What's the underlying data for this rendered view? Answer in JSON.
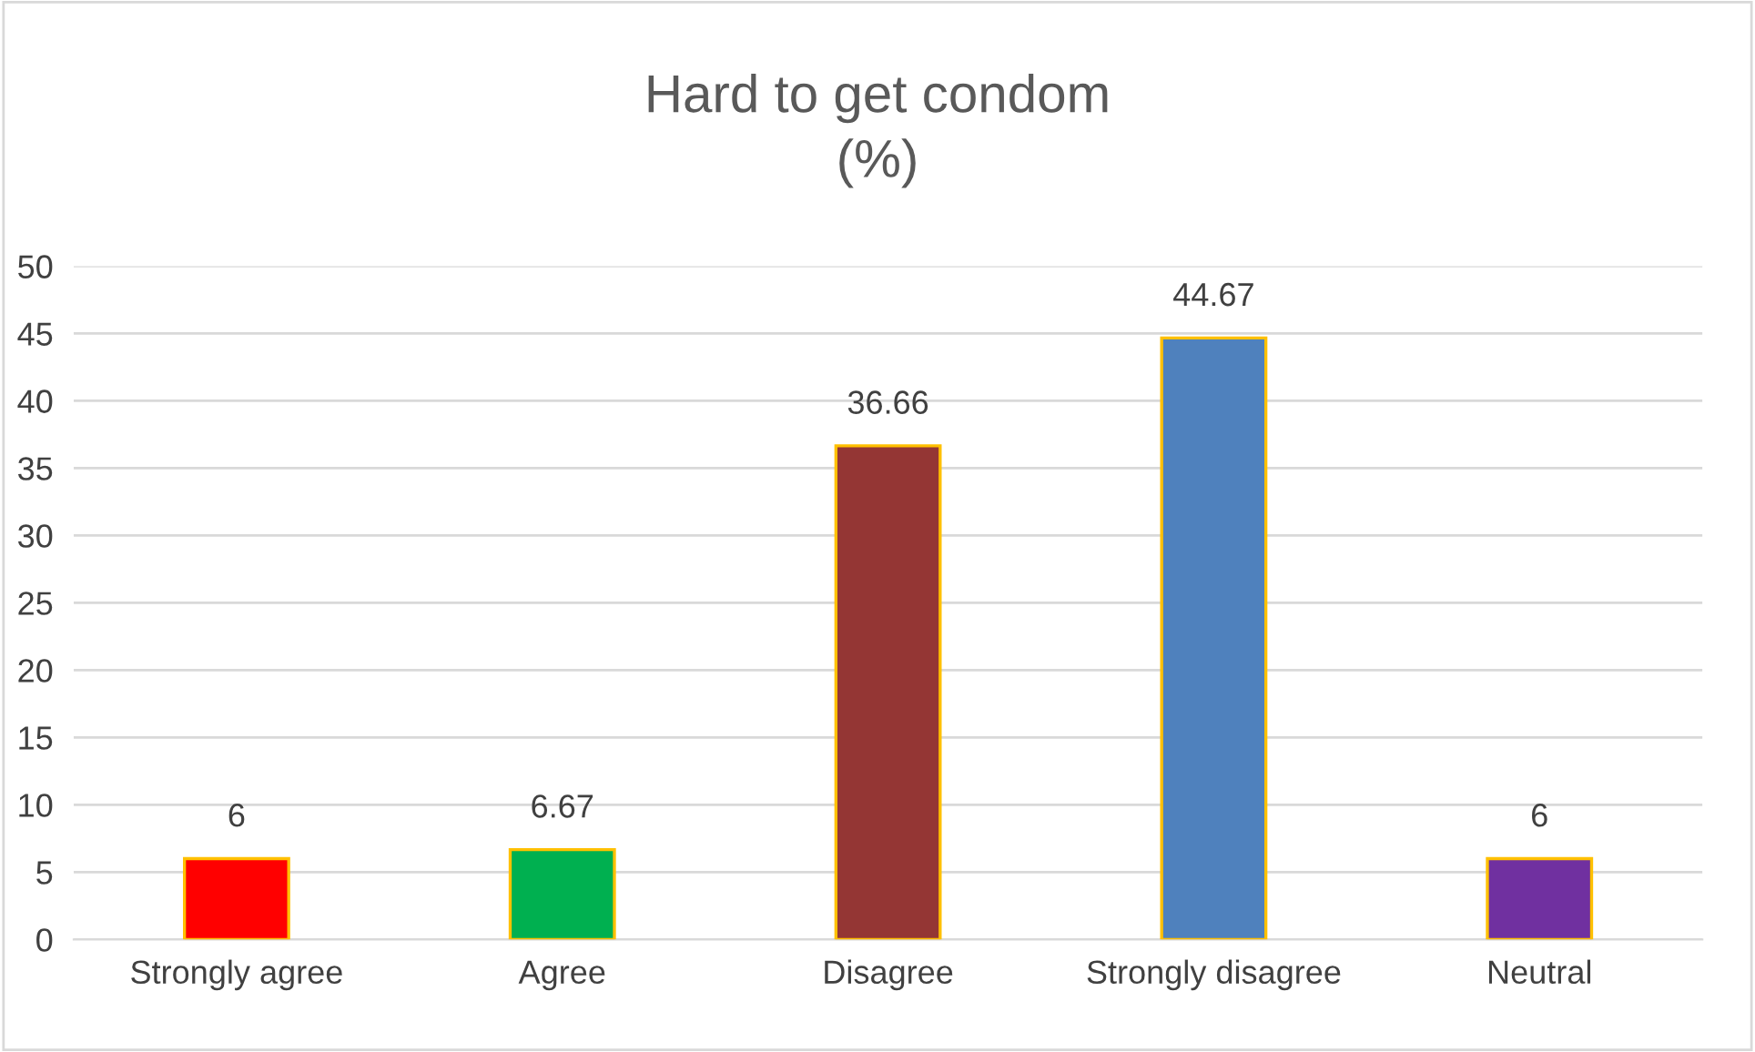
{
  "chart_data": {
    "type": "bar",
    "title": "Hard to get condom\n(%)",
    "categories": [
      "Strongly agree",
      "Agree",
      "Disagree",
      "Strongly disagree",
      "Neutral"
    ],
    "values": [
      6,
      6.67,
      36.66,
      44.67,
      6
    ],
    "colors": [
      "#ff0000",
      "#00b050",
      "#943634",
      "#4f81bd",
      "#7030a0"
    ],
    "ylim": [
      0,
      50
    ],
    "yticks": [
      0,
      5,
      10,
      15,
      20,
      25,
      30,
      35,
      40,
      45,
      50
    ],
    "grid": "y",
    "data_labels": true
  }
}
